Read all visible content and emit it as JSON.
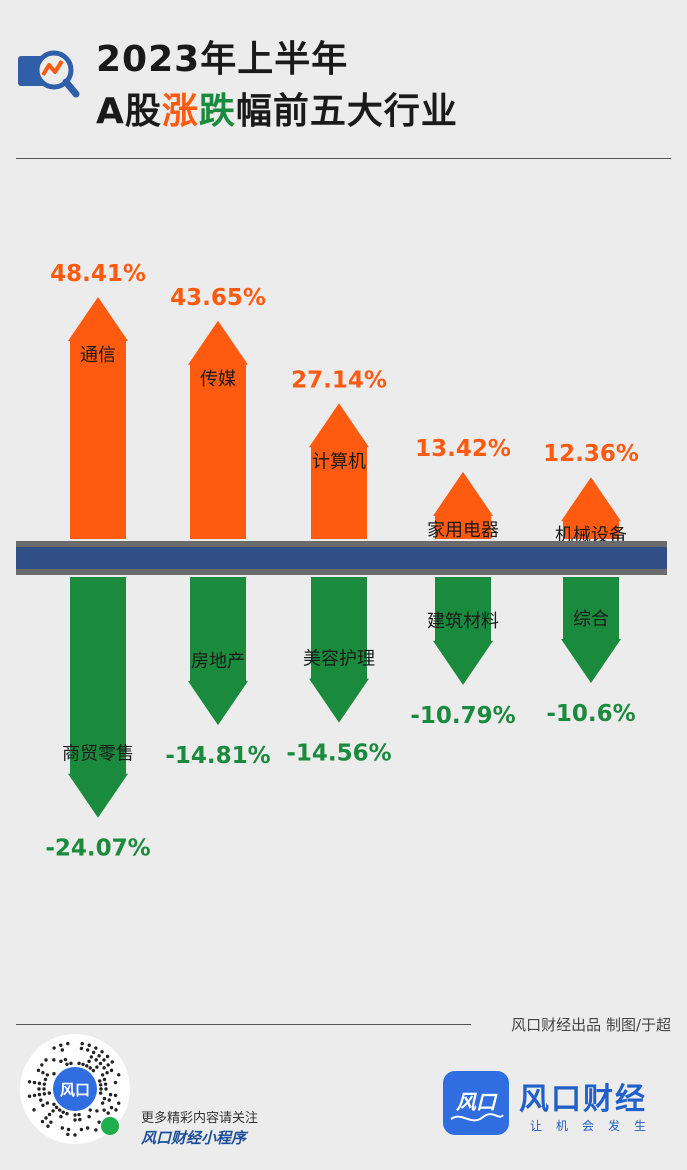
{
  "header": {
    "title_line1": "2023年上半年",
    "title_line2_prefix": "A股",
    "title_rise": "涨",
    "title_fall": "跌",
    "title_line2_suffix": "幅前五大行业"
  },
  "colors": {
    "rise": "#fe5a10",
    "fall": "#1a8a3c",
    "bar_band": "#2f4f86",
    "bar_band_edge": "#6b6b6b"
  },
  "chart_data": {
    "type": "bar",
    "unit": "%",
    "gainers": [
      {
        "name": "通信",
        "value": 48.41,
        "label": "48.41%"
      },
      {
        "name": "传媒",
        "value": 43.65,
        "label": "43.65%"
      },
      {
        "name": "计算机",
        "value": 27.14,
        "label": "27.14%"
      },
      {
        "name": "家用电器",
        "value": 13.42,
        "label": "13.42%"
      },
      {
        "name": "机械设备",
        "value": 12.36,
        "label": "12.36%"
      }
    ],
    "losers": [
      {
        "name": "商贸零售",
        "value": -24.07,
        "label": "-24.07%"
      },
      {
        "name": "房地产",
        "value": -14.81,
        "label": "-14.81%"
      },
      {
        "name": "美容护理",
        "value": -14.56,
        "label": "-14.56%"
      },
      {
        "name": "建筑材料",
        "value": -10.79,
        "label": "-10.79%"
      },
      {
        "name": "综合",
        "value": -10.6,
        "label": "-10.6%"
      }
    ]
  },
  "footer": {
    "credit": "风口财经出品   制图/于超",
    "qr_promo": "更多精彩内容请关注",
    "qr_name": "风口财经小程序",
    "qr_logo_text": "风口",
    "logo_text": "风口",
    "brand": "风口财经",
    "slogan": "让机会发生"
  }
}
